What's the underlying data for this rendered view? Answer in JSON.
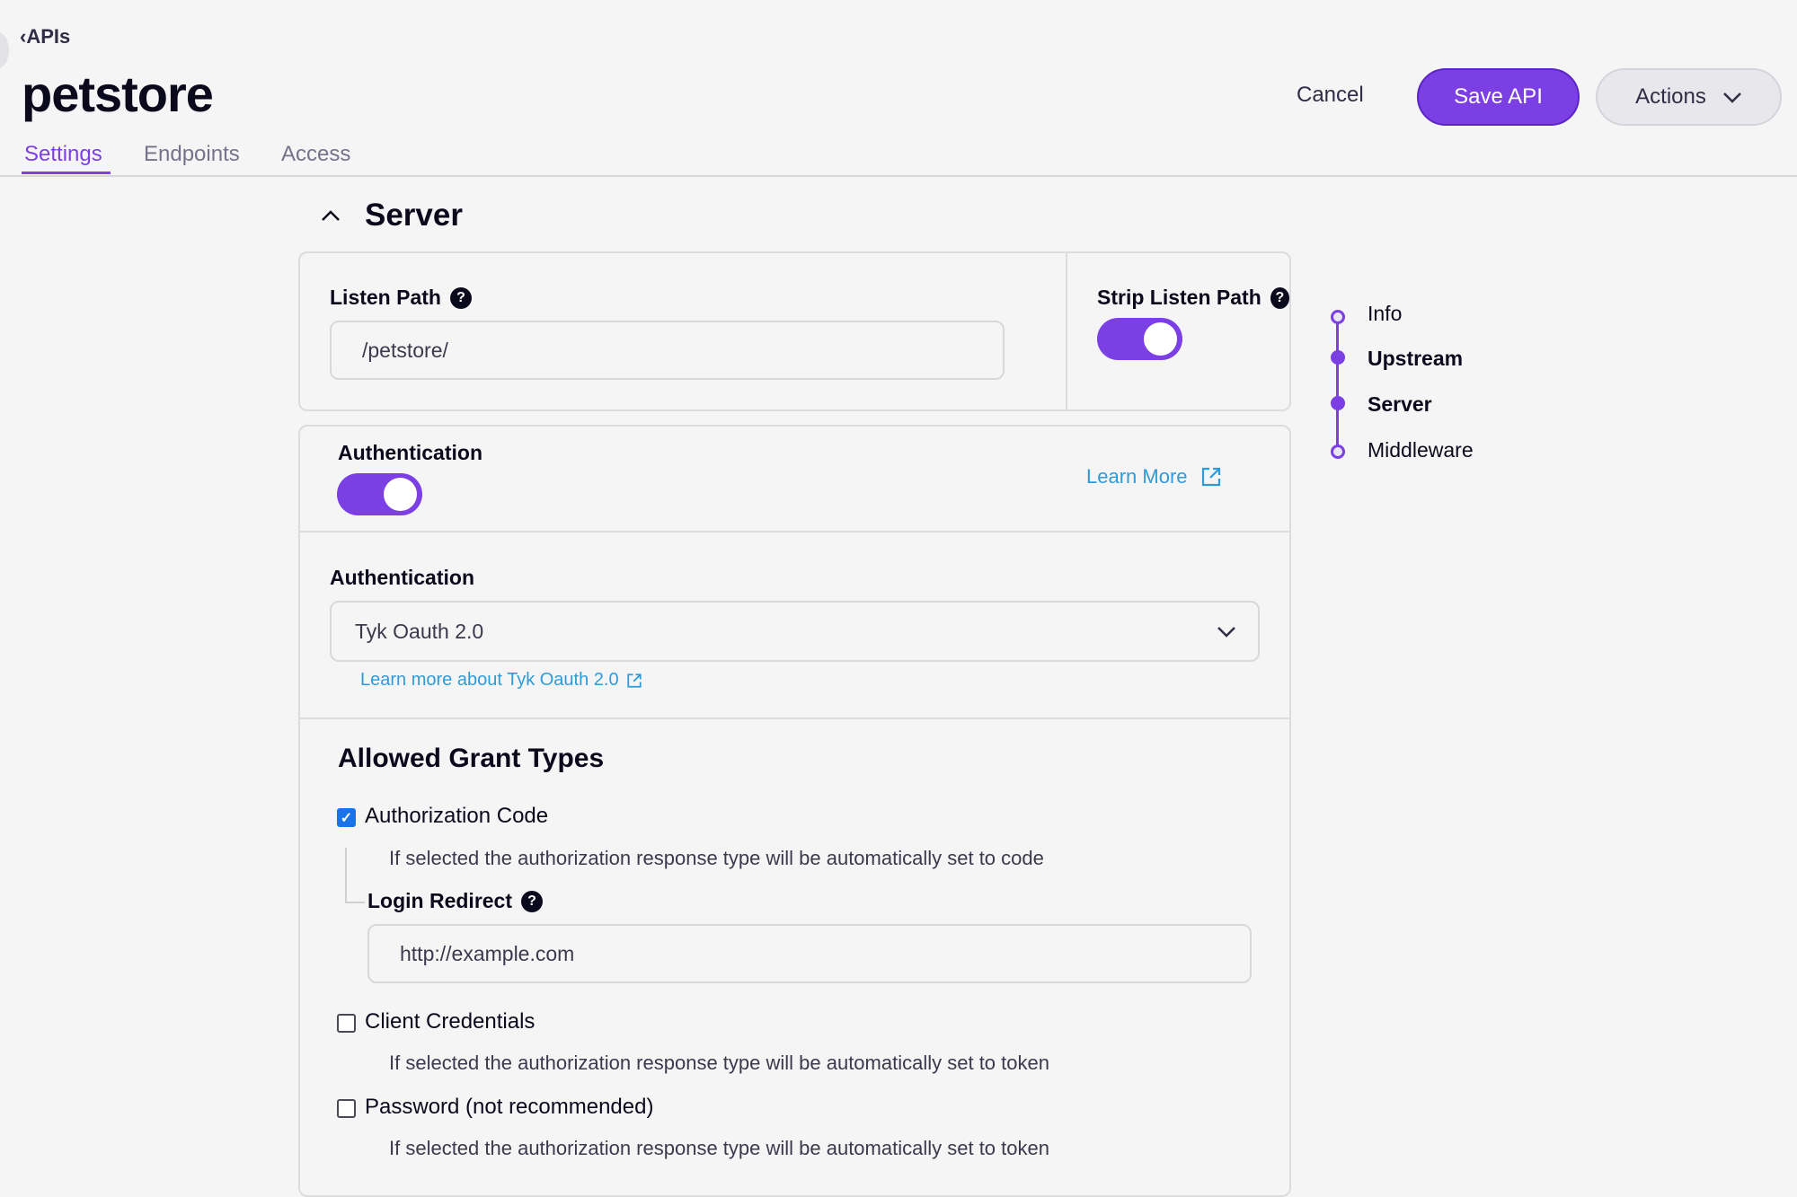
{
  "header": {
    "back_label": "APIs",
    "title": "petstore",
    "cancel_label": "Cancel",
    "save_label": "Save API",
    "actions_label": "Actions"
  },
  "tabs": [
    {
      "label": "Settings",
      "active": true
    },
    {
      "label": "Endpoints"
    },
    {
      "label": "Access"
    }
  ],
  "section": {
    "title": "Server"
  },
  "listen_path": {
    "label": "Listen Path",
    "value": "/petstore/"
  },
  "strip_listen_path": {
    "label": "Strip Listen Path",
    "enabled": true
  },
  "authentication": {
    "label": "Authentication",
    "enabled": true,
    "learn_more": "Learn More",
    "select_label": "Authentication",
    "selected": "Tyk Oauth 2.0",
    "doc_link": "Learn more about Tyk Oauth 2.0"
  },
  "grant_types": {
    "title": "Allowed Grant Types",
    "items": [
      {
        "label": "Authorization Code",
        "checked": true,
        "helper": "If selected the authorization response type will be automatically set to code"
      },
      {
        "label": "Client Credentials",
        "checked": false,
        "helper": "If selected the authorization response type will be automatically set to token"
      },
      {
        "label": "Password (not recommended)",
        "checked": false,
        "helper": "If selected the authorization response type will be automatically set to token"
      }
    ],
    "login_redirect": {
      "label": "Login Redirect",
      "value": "http://example.com"
    }
  },
  "stepper": [
    {
      "label": "Info",
      "state": "open"
    },
    {
      "label": "Upstream",
      "state": "filled"
    },
    {
      "label": "Server",
      "state": "filled"
    },
    {
      "label": "Middleware",
      "state": "open"
    }
  ],
  "colors": {
    "accent": "#7b3fe4",
    "link": "#2f9bd8",
    "checkbox": "#1a73e8"
  }
}
